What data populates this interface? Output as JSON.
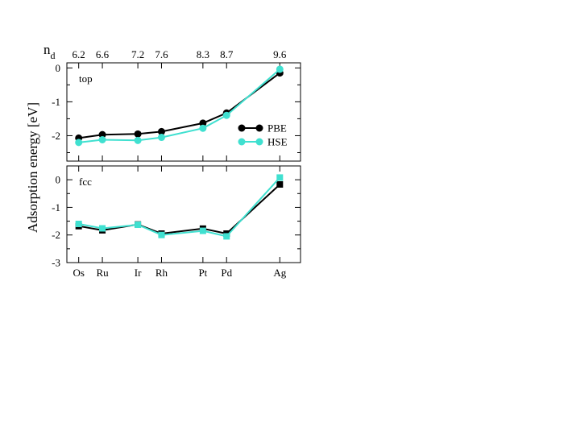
{
  "chart_data": {
    "type": "line",
    "ylabel": "Adsorption energy [eV]",
    "top_axis_label": "n",
    "top_axis_label_sub": "d",
    "x_tick_labels": [
      "Os",
      "Ru",
      "Ir",
      "Rh",
      "Pt",
      "Pd",
      "Ag"
    ],
    "x": [
      6.2,
      6.6,
      7.2,
      7.6,
      8.3,
      8.7,
      9.6
    ],
    "x_top_tick_labels": [
      "6.2",
      "6.6",
      "7.2",
      "7.6",
      "8.3",
      "8.7",
      "9.6"
    ],
    "xlim": [
      6.0,
      9.95
    ],
    "colors": {
      "PBE": "#000000",
      "HSE": "#40e0d0"
    },
    "panels": [
      {
        "label": "top",
        "ylim": [
          -2.75,
          0.15
        ],
        "yticks": [
          0,
          -1,
          -2
        ],
        "legend": {
          "placement": "right",
          "entries": [
            "PBE",
            "HSE"
          ]
        },
        "series": [
          {
            "name": "PBE",
            "marker": "circle",
            "values": [
              -2.07,
              -1.97,
              -1.95,
              -1.88,
              -1.63,
              -1.33,
              -0.15
            ]
          },
          {
            "name": "HSE",
            "marker": "circle",
            "values": [
              -2.2,
              -2.12,
              -2.14,
              -2.05,
              -1.78,
              -1.4,
              -0.04
            ]
          }
        ]
      },
      {
        "label": "fcc",
        "ylim": [
          -3.0,
          0.5
        ],
        "yticks": [
          0,
          -1,
          -2,
          -3
        ],
        "series": [
          {
            "name": "PBE",
            "marker": "square",
            "values": [
              -1.68,
              -1.83,
              -1.62,
              -1.95,
              -1.77,
              -1.95,
              -0.17
            ]
          },
          {
            "name": "HSE",
            "marker": "square",
            "values": [
              -1.6,
              -1.76,
              -1.63,
              -2.0,
              -1.85,
              -2.05,
              0.08
            ]
          }
        ]
      }
    ]
  }
}
